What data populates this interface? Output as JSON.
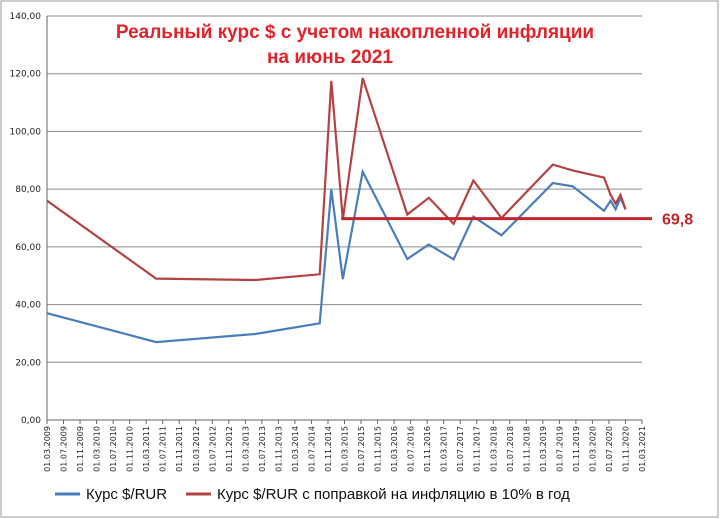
{
  "chart_data": {
    "type": "line",
    "title_line1": "Реальный курс $ с учетом накопленной инфляции",
    "title_line2": "на июнь 2021",
    "xlabel": "",
    "ylabel": "",
    "ylim": [
      0,
      140
    ],
    "y_ticks": [
      "0,00",
      "20,00",
      "40,00",
      "60,00",
      "80,00",
      "100,00",
      "120,00",
      "140,00"
    ],
    "categories": [
      "01.03.2009",
      "01.07.2009",
      "01.11.2009",
      "01.03.2010",
      "01.07.2010",
      "01.11.2010",
      "01.03.2011",
      "01.07.2011",
      "01.11.2011",
      "01.03.2012",
      "01.07.2012",
      "01.11.2012",
      "01.03.2013",
      "01.07.2013",
      "01.11.2013",
      "01.03.2014",
      "01.07.2014",
      "01.11.2014",
      "01.03.2015",
      "01.07.2015",
      "01.11.2015",
      "01.03.2016",
      "01.07.2016",
      "01.11.2016",
      "01.03.2017",
      "01.07.2017",
      "01.11.2017",
      "01.03.2018",
      "01.07.2018",
      "01.11.2018",
      "01.03.2019",
      "01.07.2019",
      "01.11.2019",
      "01.03.2020",
      "01.07.2020",
      "01.11.2020",
      "01.03.2021"
    ],
    "grid": true,
    "legend_position": "bottom",
    "series": [
      {
        "name": "Курс $/RUR",
        "color": "#4a7ebb",
        "x": [
          0,
          6.6,
          12.6,
          16.5,
          17.2,
          17.9,
          19.1,
          21.8,
          23.1,
          24.6,
          25.8,
          27.5,
          30.6,
          31.8,
          33.7,
          34.1,
          34.4,
          34.7,
          35.0
        ],
        "y": [
          37,
          27,
          29.8,
          33.5,
          80,
          48.8,
          86,
          55.8,
          60.8,
          55.7,
          70.5,
          64,
          82.1,
          81,
          72.5,
          76,
          73,
          77,
          73
        ]
      },
      {
        "name": "Курс $/RUR с поправкой на инфляцию в 10% в год",
        "color": "#b34341",
        "x": [
          0,
          6.6,
          12.6,
          16.5,
          17.2,
          17.9,
          19.1,
          21.8,
          23.1,
          24.6,
          25.8,
          27.5,
          30.6,
          31.8,
          33.7,
          34.1,
          34.4,
          34.7,
          35.0
        ],
        "y": [
          76,
          49,
          48.5,
          50.5,
          117.5,
          69.5,
          118.5,
          71.2,
          77,
          68,
          83,
          70,
          88.5,
          86.5,
          84,
          78,
          75,
          78,
          73
        ]
      }
    ],
    "annotation": {
      "label": "69,8",
      "value": 69.8,
      "x_start": 17.8,
      "color": "#c0262b"
    }
  }
}
